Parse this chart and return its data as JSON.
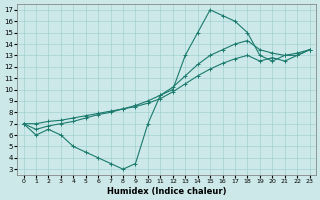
{
  "xlabel": "Humidex (Indice chaleur)",
  "xlim": [
    -0.5,
    23.5
  ],
  "ylim": [
    2.5,
    17.5
  ],
  "yticks": [
    3,
    4,
    5,
    6,
    7,
    8,
    9,
    10,
    11,
    12,
    13,
    14,
    15,
    16,
    17
  ],
  "xticks": [
    0,
    1,
    2,
    3,
    4,
    5,
    6,
    7,
    8,
    9,
    10,
    11,
    12,
    13,
    14,
    15,
    16,
    17,
    18,
    19,
    20,
    21,
    22,
    23
  ],
  "background_color": "#cce8e8",
  "grid_color": "#99cccc",
  "line_color": "#1a7a6e",
  "line1_x": [
    0,
    1,
    2,
    3,
    4,
    5,
    6,
    7,
    8,
    9,
    10,
    11,
    12,
    13,
    14,
    15,
    16,
    17,
    18,
    19,
    20,
    21,
    22,
    23
  ],
  "line1_y": [
    7.0,
    6.0,
    6.5,
    6.0,
    5.0,
    4.5,
    4.0,
    3.5,
    3.0,
    3.5,
    7.0,
    9.5,
    10.0,
    13.0,
    15.0,
    17.0,
    16.5,
    16.0,
    15.0,
    13.0,
    12.5,
    13.0,
    13.0,
    13.5
  ],
  "line2_x": [
    0,
    1,
    2,
    3,
    4,
    5,
    6,
    7,
    8,
    9,
    10,
    11,
    12,
    13,
    14,
    15,
    16,
    17,
    18,
    19,
    20,
    21,
    22,
    23
  ],
  "line2_y": [
    7.0,
    6.5,
    6.8,
    7.0,
    7.2,
    7.5,
    7.8,
    8.0,
    8.3,
    8.6,
    9.0,
    9.5,
    10.2,
    11.2,
    12.2,
    13.0,
    13.5,
    14.0,
    14.3,
    13.5,
    13.2,
    13.0,
    13.2,
    13.5
  ],
  "line3_x": [
    0,
    1,
    2,
    3,
    4,
    5,
    6,
    7,
    8,
    9,
    10,
    11,
    12,
    13,
    14,
    15,
    16,
    17,
    18,
    19,
    20,
    21,
    22,
    23
  ],
  "line3_y": [
    7.0,
    7.0,
    7.2,
    7.3,
    7.5,
    7.7,
    7.9,
    8.1,
    8.3,
    8.5,
    8.8,
    9.2,
    9.8,
    10.5,
    11.2,
    11.8,
    12.3,
    12.7,
    13.0,
    12.5,
    12.8,
    12.5,
    13.0,
    13.5
  ]
}
